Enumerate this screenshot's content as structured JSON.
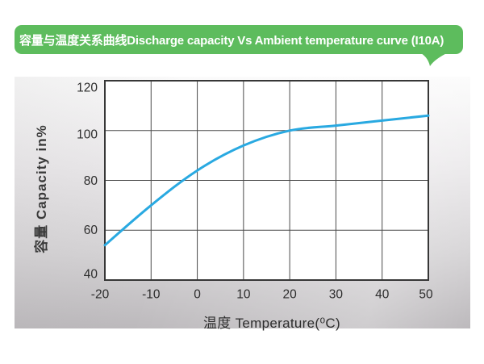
{
  "banner": {
    "title": "容量与温度关系曲线Discharge capacity Vs Ambient temperature curve (I10A)",
    "bg_color": "#5dbc5d",
    "text_color": "#ffffff"
  },
  "chart_data": {
    "type": "line",
    "title": "容量与温度关系曲线Discharge capacity Vs Ambient temperature curve (I10A)",
    "x": [
      -20,
      -10,
      0,
      10,
      20,
      30,
      40,
      50
    ],
    "series": [
      {
        "name": "Discharge capacity (I10A)",
        "values": [
          54,
          70,
          84,
          94,
          100,
          102,
          104,
          106
        ]
      }
    ],
    "xlabel": "温度 Temperature(⁰C)",
    "ylabel": "容量 Capacity in%",
    "xlim": [
      -20,
      50
    ],
    "ylim": [
      40,
      120
    ],
    "x_ticks": [
      "-20",
      "-10",
      "0",
      "10",
      "20",
      "30",
      "40",
      "50"
    ],
    "y_ticks": [
      "40",
      "60",
      "80",
      "100",
      "120"
    ],
    "grid": true,
    "legend": "none",
    "line_color": "#29a9e1",
    "grid_color": "#4a4a4a",
    "border_color": "#373737",
    "plot_bg": "#ffffff",
    "tick_color": "#2d2d2d"
  }
}
